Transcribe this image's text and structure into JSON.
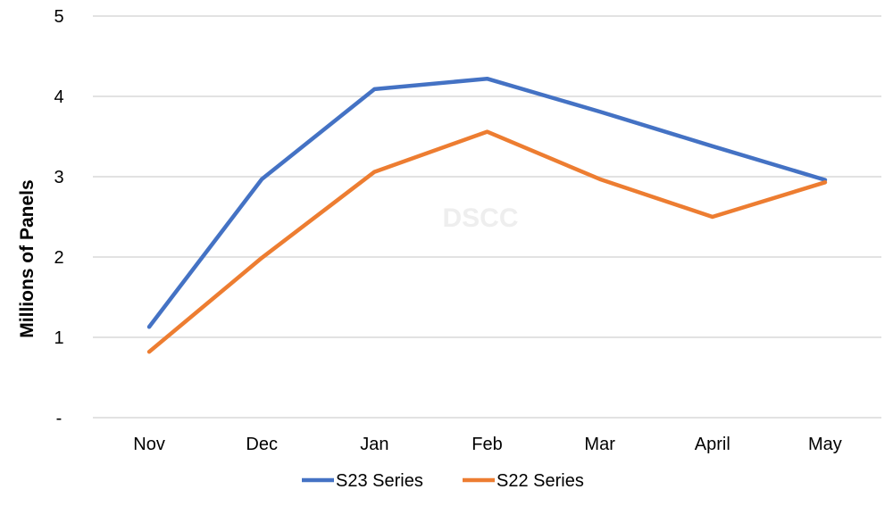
{
  "chart_data": {
    "type": "line",
    "title": "",
    "xlabel": "",
    "ylabel": "Millions of Panels",
    "categories": [
      "Nov",
      "Dec",
      "Jan",
      "Feb",
      "Mar",
      "April",
      "May"
    ],
    "ylim": [
      0,
      5
    ],
    "yticks": [
      0,
      1,
      2,
      3,
      4,
      5
    ],
    "ytick_labels": [
      "-",
      "1",
      "2",
      "3",
      "4",
      "5"
    ],
    "grid": true,
    "legend_position": "bottom",
    "watermark": "DSCC",
    "series": [
      {
        "name": "S23 Series",
        "color": "#4472C4",
        "values": [
          1.13,
          2.97,
          4.09,
          4.22,
          3.81,
          3.38,
          2.96
        ]
      },
      {
        "name": "S22 Series",
        "color": "#ED7D31",
        "values": [
          0.82,
          1.99,
          3.06,
          3.56,
          2.97,
          2.5,
          2.93
        ]
      }
    ]
  }
}
